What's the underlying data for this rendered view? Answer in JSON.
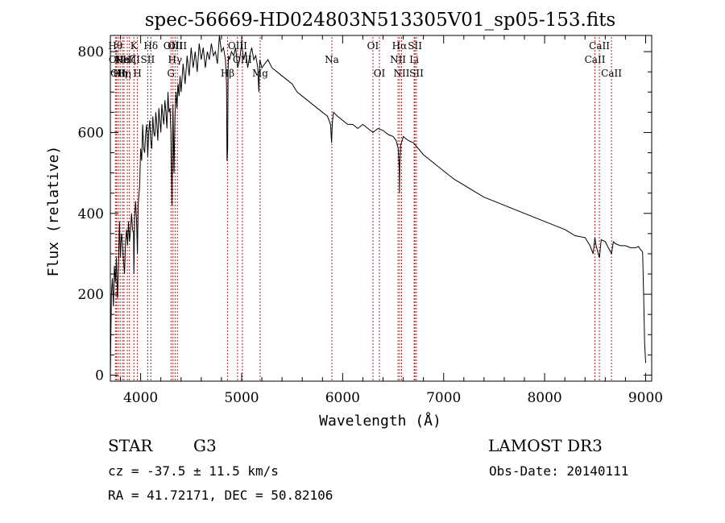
{
  "chart_data": {
    "type": "line",
    "title": "spec-56669-HD024803N513305V01_sp05-153.fits",
    "xlabel": "Wavelength (Å)",
    "ylabel": "Flux (relative)",
    "xlim": [
      3700,
      9060
    ],
    "ylim": [
      -15,
      840
    ],
    "xticks": [
      4000,
      5000,
      6000,
      7000,
      8000,
      9000
    ],
    "yticks": [
      0,
      200,
      400,
      600,
      800
    ],
    "xtick_labels": [
      "4000",
      "5000",
      "6000",
      "7000",
      "8000",
      "9000"
    ],
    "ytick_labels": [
      "0",
      "200",
      "400",
      "600",
      "800"
    ],
    "grid": false,
    "series": [
      {
        "name": "flux",
        "x": [
          3700,
          3710,
          3720,
          3730,
          3740,
          3750,
          3760,
          3770,
          3780,
          3790,
          3800,
          3810,
          3820,
          3830,
          3840,
          3850,
          3860,
          3870,
          3880,
          3890,
          3900,
          3910,
          3920,
          3930,
          3933,
          3940,
          3950,
          3960,
          3968,
          3975,
          3990,
          4000,
          4010,
          4020,
          4030,
          4040,
          4050,
          4060,
          4070,
          4080,
          4090,
          4100,
          4110,
          4120,
          4130,
          4140,
          4150,
          4160,
          4170,
          4180,
          4190,
          4200,
          4210,
          4220,
          4230,
          4240,
          4250,
          4260,
          4270,
          4280,
          4290,
          4300,
          4310,
          4320,
          4330,
          4340,
          4350,
          4360,
          4370,
          4380,
          4390,
          4400,
          4420,
          4440,
          4460,
          4480,
          4500,
          4520,
          4540,
          4560,
          4580,
          4600,
          4620,
          4640,
          4660,
          4680,
          4700,
          4720,
          4740,
          4760,
          4780,
          4800,
          4820,
          4840,
          4850,
          4855,
          4861,
          4866,
          4870,
          4880,
          4900,
          4920,
          4940,
          4960,
          4980,
          5000,
          5020,
          5040,
          5060,
          5080,
          5100,
          5120,
          5140,
          5160,
          5170,
          5175,
          5180,
          5190,
          5200,
          5230,
          5260,
          5300,
          5350,
          5400,
          5450,
          5500,
          5550,
          5600,
          5650,
          5700,
          5750,
          5800,
          5850,
          5880,
          5890,
          5896,
          5900,
          5910,
          5950,
          6000,
          6050,
          6100,
          6150,
          6200,
          6250,
          6300,
          6350,
          6400,
          6450,
          6500,
          6530,
          6550,
          6560,
          6563,
          6566,
          6575,
          6590,
          6600,
          6650,
          6700,
          6750,
          6800,
          6850,
          6900,
          6950,
          7000,
          7100,
          7200,
          7300,
          7400,
          7500,
          7600,
          7700,
          7800,
          7900,
          8000,
          8100,
          8200,
          8300,
          8400,
          8450,
          8480,
          8498,
          8510,
          8542,
          8560,
          8600,
          8662,
          8680,
          8700,
          8750,
          8800,
          8850,
          8900,
          8930,
          8950,
          8970,
          8980,
          8990,
          9000
        ],
        "values": [
          5,
          200,
          240,
          170,
          270,
          230,
          290,
          190,
          260,
          380,
          290,
          350,
          330,
          280,
          250,
          330,
          360,
          320,
          380,
          330,
          360,
          400,
          360,
          350,
          250,
          390,
          430,
          380,
          300,
          420,
          470,
          560,
          530,
          620,
          560,
          550,
          600,
          620,
          540,
          600,
          630,
          580,
          560,
          640,
          600,
          590,
          650,
          620,
          580,
          660,
          630,
          600,
          670,
          640,
          620,
          680,
          650,
          610,
          700,
          650,
          660,
          600,
          420,
          670,
          500,
          640,
          700,
          660,
          720,
          690,
          740,
          700,
          770,
          720,
          790,
          740,
          810,
          760,
          800,
          750,
          820,
          780,
          810,
          760,
          800,
          780,
          820,
          790,
          800,
          770,
          840,
          800,
          810,
          780,
          720,
          530,
          560,
          760,
          790,
          780,
          800,
          790,
          810,
          760,
          780,
          820,
          780,
          800,
          760,
          790,
          810,
          780,
          790,
          760,
          700,
          740,
          780,
          770,
          760,
          770,
          780,
          760,
          750,
          740,
          730,
          720,
          700,
          690,
          680,
          670,
          660,
          650,
          640,
          620,
          575,
          610,
          630,
          650,
          640,
          630,
          620,
          620,
          610,
          620,
          610,
          600,
          610,
          605,
          595,
          590,
          580,
          560,
          510,
          450,
          520,
          570,
          580,
          590,
          580,
          575,
          560,
          545,
          535,
          525,
          515,
          505,
          485,
          470,
          455,
          440,
          430,
          420,
          410,
          400,
          390,
          380,
          370,
          360,
          345,
          340,
          320,
          300,
          340,
          320,
          290,
          335,
          330,
          300,
          330,
          325,
          320,
          320,
          315,
          315,
          318,
          310,
          305,
          200,
          80,
          30
        ]
      }
    ],
    "annotations": {
      "lines": [
        {
          "wavelength": 3750,
          "label": "Hθ",
          "row": 1
        },
        {
          "wavelength": 3760,
          "label": "OII",
          "row": 2
        },
        {
          "wavelength": 3777,
          "label": "OII",
          "row": 3
        },
        {
          "wavelength": 3797,
          "label": "Hη",
          "row": 3
        },
        {
          "wavelength": 3820,
          "label": "He",
          "row": 2
        },
        {
          "wavelength": 3835,
          "label": "Hη",
          "row": 3
        },
        {
          "wavelength": 3868,
          "label": "NeIII",
          "row": 2
        },
        {
          "wavelength": 3889,
          "label": "Hζ",
          "row": 2
        },
        {
          "wavelength": 3933,
          "label": "K",
          "row": 1
        },
        {
          "wavelength": 3968,
          "label": "H",
          "row": 3
        },
        {
          "wavelength": 4070,
          "label": "SII",
          "row": 2
        },
        {
          "wavelength": 4101,
          "label": "Hδ",
          "row": 1
        },
        {
          "wavelength": 4300,
          "label": "G",
          "row": 3
        },
        {
          "wavelength": 4320,
          "label": "OIII",
          "row": 1
        },
        {
          "wavelength": 4341,
          "label": "Hγ",
          "row": 2
        },
        {
          "wavelength": 4363,
          "label": "OIII",
          "row": 1
        },
        {
          "wavelength": 4861,
          "label": "Hβ",
          "row": 3
        },
        {
          "wavelength": 4959,
          "label": "OIII",
          "row": 1
        },
        {
          "wavelength": 5007,
          "label": "OIII",
          "row": 2
        },
        {
          "wavelength": 5183,
          "label": "Mg",
          "row": 3
        },
        {
          "wavelength": 5893,
          "label": "Na",
          "row": 2
        },
        {
          "wavelength": 6300,
          "label": "OI",
          "row": 1
        },
        {
          "wavelength": 6364,
          "label": "OI",
          "row": 3
        },
        {
          "wavelength": 6548,
          "label": "NII",
          "row": 2
        },
        {
          "wavelength": 6563,
          "label": "Hα",
          "row": 1
        },
        {
          "wavelength": 6583,
          "label": "NII",
          "row": 3
        },
        {
          "wavelength": 6708,
          "label": "Li",
          "row": 2
        },
        {
          "wavelength": 6716,
          "label": "SII",
          "row": 1
        },
        {
          "wavelength": 6731,
          "label": "SII",
          "row": 3
        },
        {
          "wavelength": 8498,
          "label": "CaII",
          "row": 2
        },
        {
          "wavelength": 8542,
          "label": "CaII",
          "row": 1
        },
        {
          "wavelength": 8662,
          "label": "CaII",
          "row": 3
        }
      ]
    }
  },
  "info": {
    "object_class": "STAR",
    "subclass": "G3",
    "survey": "LAMOST DR3",
    "redshift": "cz = -37.5 ± 11.5 km/s",
    "obs_date": "Obs-Date: 20140111",
    "coords": "RA =  41.72171, DEC =  50.82106"
  },
  "colors": {
    "ink": "#000000",
    "marker": "#b22222",
    "background": "#ffffff"
  }
}
